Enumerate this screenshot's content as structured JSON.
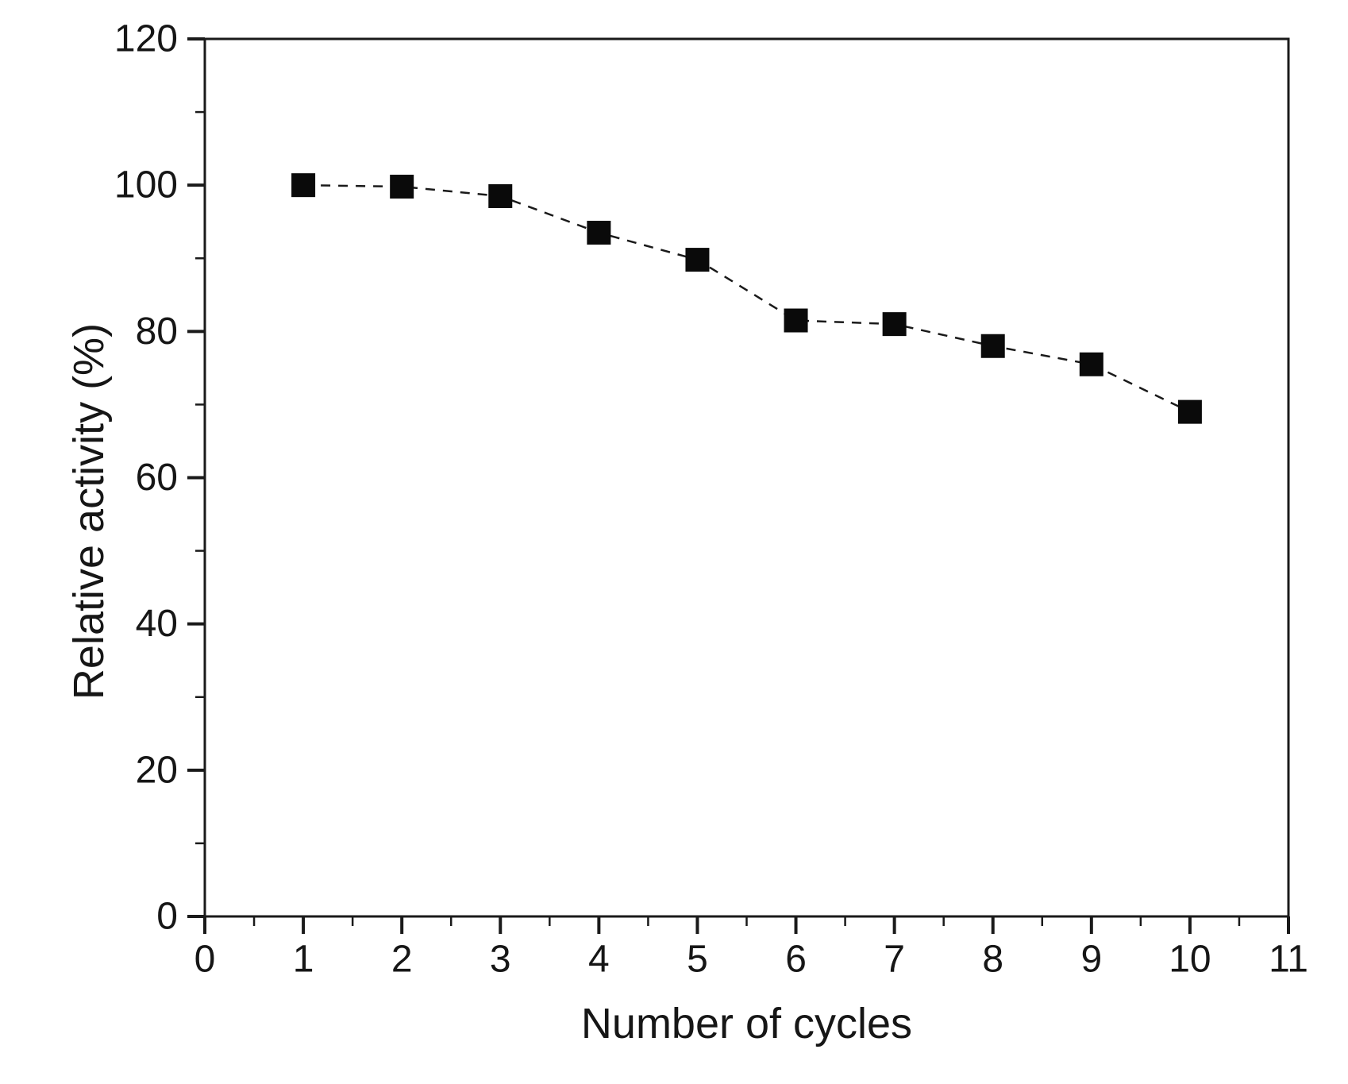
{
  "figure": {
    "background": "#ffffff",
    "ink_color": "#1a1a1a",
    "marker_color": "#0a0a0a"
  },
  "chart_data": {
    "type": "line",
    "title": "",
    "xlabel": "Number of cycles",
    "ylabel": "Relative activity (%)",
    "x": [
      1,
      2,
      3,
      4,
      5,
      6,
      7,
      8,
      9,
      10
    ],
    "series": [
      {
        "name": "Relative activity",
        "values": [
          100,
          99.8,
          98.5,
          93.5,
          89.8,
          81.5,
          81,
          78,
          75.5,
          69
        ]
      }
    ],
    "xlim": [
      0,
      11
    ],
    "ylim": [
      0,
      120
    ],
    "x_ticks": [
      0,
      1,
      2,
      3,
      4,
      5,
      6,
      7,
      8,
      9,
      10,
      11
    ],
    "y_ticks": [
      0,
      20,
      40,
      60,
      80,
      100,
      120
    ],
    "x_minor_ticks": [
      0.5,
      1.5,
      2.5,
      3.5,
      4.5,
      5.5,
      6.5,
      7.5,
      8.5,
      9.5,
      10.5
    ],
    "y_minor_ticks": [
      10,
      30,
      50,
      70,
      90,
      110
    ],
    "grid": false,
    "legend_position": "none",
    "marker": "square",
    "line_style": "dashed",
    "line_color": "#1a1a1a",
    "marker_color": "#0a0a0a"
  }
}
